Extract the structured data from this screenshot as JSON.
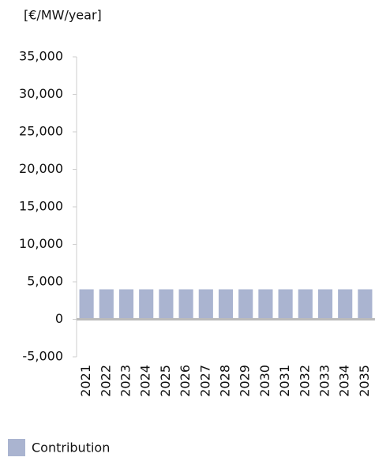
{
  "chart_data": {
    "type": "bar",
    "y_label": "[€/MW/year]",
    "categories": [
      "2021",
      "2022",
      "2023",
      "2024",
      "2025",
      "2026",
      "2027",
      "2028",
      "2029",
      "2030",
      "2031",
      "2032",
      "2033",
      "2034",
      "2035"
    ],
    "series": [
      {
        "name": "Contribution",
        "color": "#aab4d0",
        "values": [
          4000,
          4000,
          4000,
          4000,
          4000,
          4000,
          4000,
          4000,
          4000,
          4000,
          4000,
          4000,
          4000,
          4000,
          4000
        ]
      }
    ],
    "ylim": [
      -5000,
      35000
    ],
    "yticks": [
      {
        "value": -5000,
        "label": "-5,000"
      },
      0,
      {
        "value": 5000,
        "label": "5,000"
      },
      {
        "value": 10000,
        "label": "10,000"
      },
      {
        "value": 15000,
        "label": "15,000"
      },
      {
        "value": 20000,
        "label": "20,000"
      },
      {
        "value": 25000,
        "label": "25,000"
      },
      {
        "value": 30000,
        "label": "30,000"
      },
      {
        "value": 35000,
        "label": "35,000"
      }
    ]
  }
}
